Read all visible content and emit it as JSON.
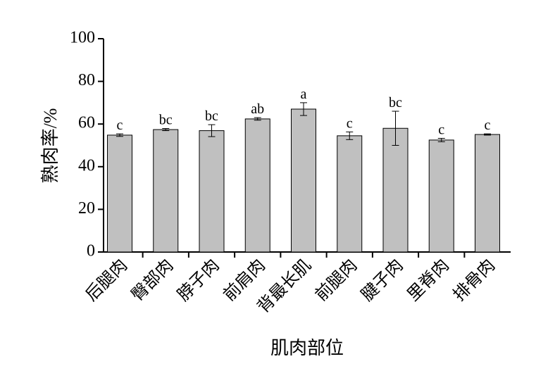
{
  "chart_data": {
    "type": "bar",
    "categories": [
      "后腿肉",
      "臀部肉",
      "脖子肉",
      "前肩肉",
      "背最长肌",
      "前腿肉",
      "腱子肉",
      "里脊肉",
      "排骨肉"
    ],
    "values": [
      54.8,
      57.4,
      56.9,
      62.4,
      67.0,
      54.5,
      58.0,
      52.5,
      55.1
    ],
    "errors": [
      0.6,
      0.5,
      2.8,
      0.6,
      3.0,
      1.8,
      8.0,
      0.8,
      0.3
    ],
    "letters": [
      "c",
      "bc",
      "bc",
      "ab",
      "a",
      "c",
      "bc",
      "c",
      "c"
    ],
    "color": "#c0c0c0",
    "ylim": [
      0,
      100
    ],
    "yticks": [
      0,
      20,
      40,
      60,
      80,
      100
    ],
    "xlabel": "肌肉部位",
    "ylabel": "熟肉率/%"
  }
}
